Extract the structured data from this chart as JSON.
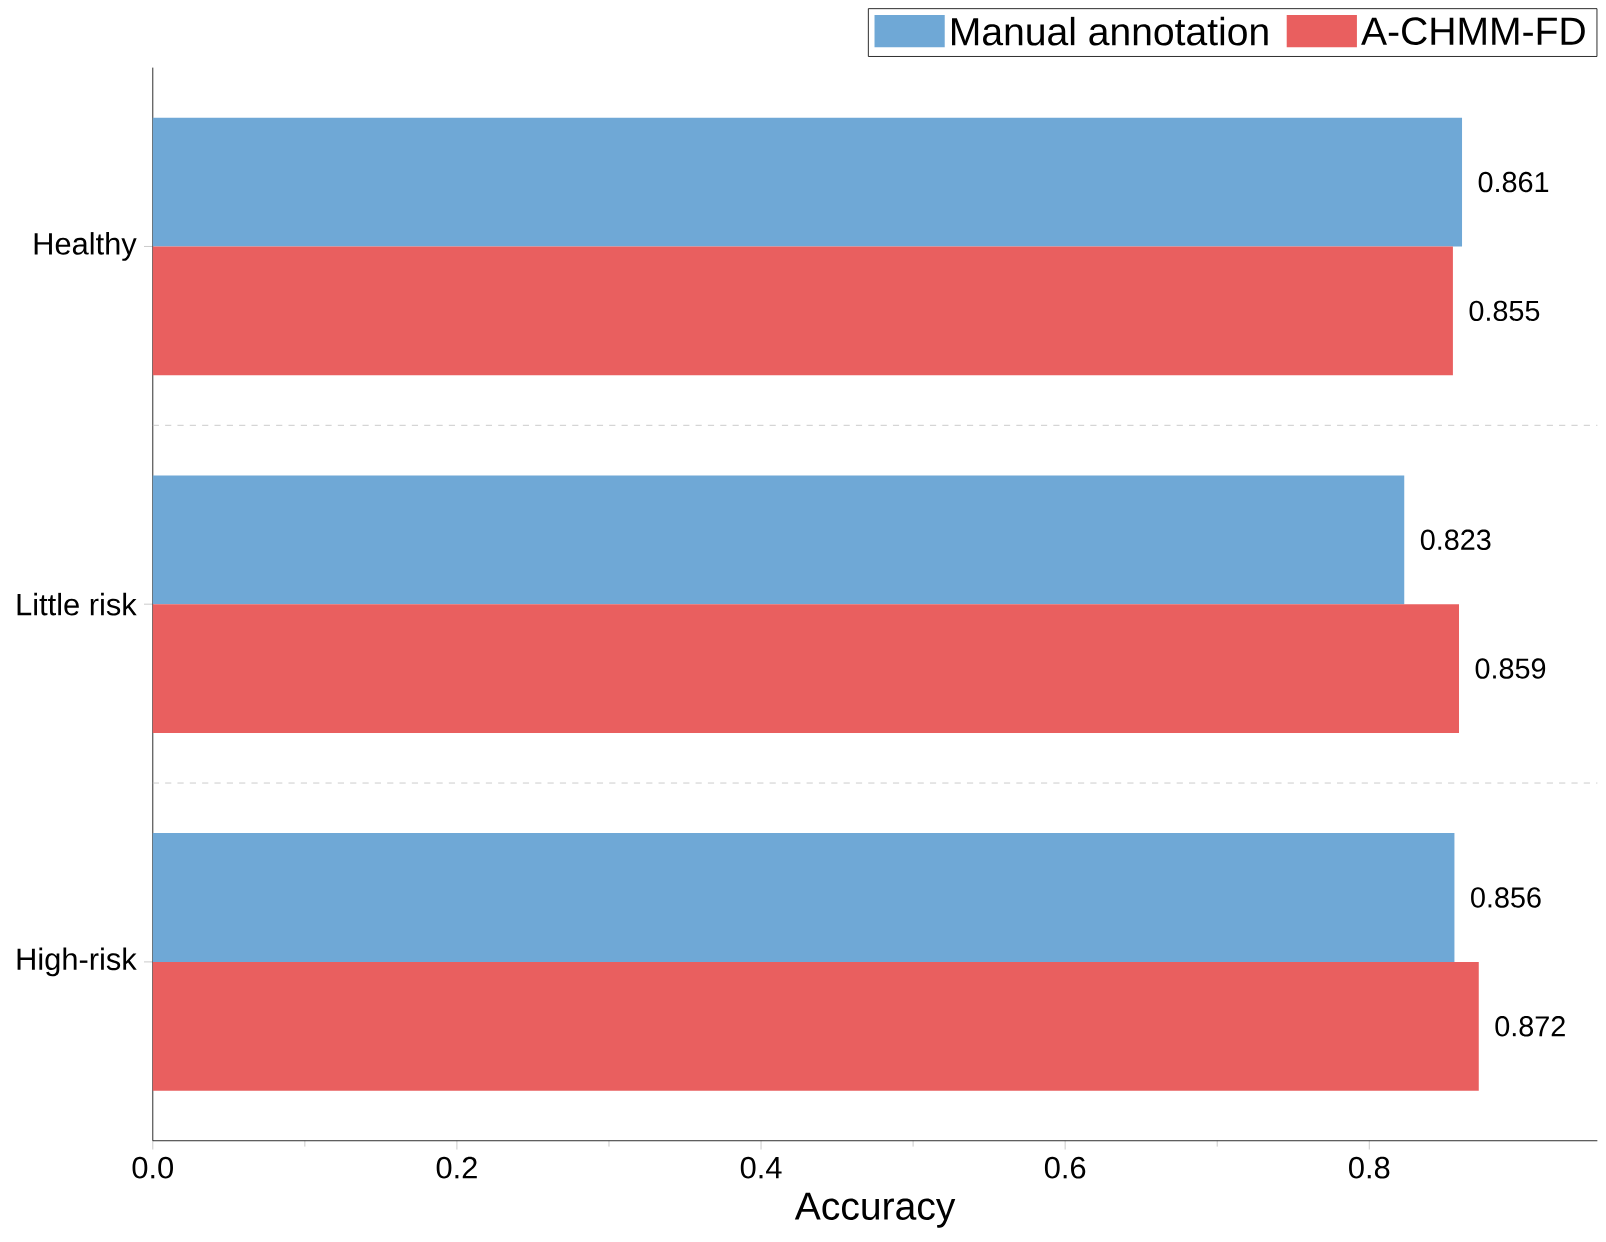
{
  "chart_data": {
    "type": "bar",
    "orientation": "horizontal",
    "xlabel": "Accuracy",
    "categories": [
      "Healthy",
      "Little risk",
      "High-risk"
    ],
    "series": [
      {
        "name": "Manual annotation",
        "color": "#6fa8d6",
        "values": [
          0.861,
          0.823,
          0.856
        ]
      },
      {
        "name": "A-CHMM-FD",
        "color": "#e95f5f",
        "values": [
          0.855,
          0.859,
          0.872
        ]
      }
    ],
    "xlim": [
      0,
      0.95
    ],
    "xticks": [
      {
        "value": 0,
        "label": "0.0"
      },
      {
        "value": 0.2,
        "label": "0.2"
      },
      {
        "value": 0.4,
        "label": "0.4"
      },
      {
        "value": 0.6,
        "label": "0.6"
      },
      {
        "value": 0.8,
        "label": "0.8"
      }
    ],
    "data_labels": true,
    "legend": "top right",
    "grid": false
  }
}
